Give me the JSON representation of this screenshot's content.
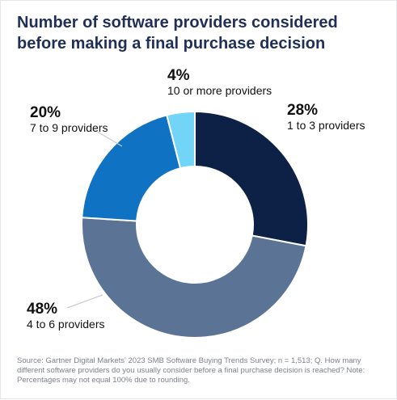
{
  "title": "Number of software providers considered before making a final purchase decision",
  "source": "Source: Gartner Digital Markets' 2023 SMB Software Buying Trends Survey; n = 1,513; Q. How many different software providers do you usually consider before a final purchase decision is reached? Note: Percentages may not equal 100% due to rounding.",
  "chart_data": {
    "type": "pie",
    "donut": true,
    "categories": [
      "1 to 3 providers",
      "4 to 6 providers",
      "7 to 9 providers",
      "10 or more providers"
    ],
    "values": [
      28,
      48,
      20,
      4
    ],
    "value_labels": [
      "28%",
      "48%",
      "20%",
      "4%"
    ],
    "colors": [
      "#0d2147",
      "#5b7496",
      "#0f72c3",
      "#72d4f6"
    ],
    "legend": "none"
  }
}
